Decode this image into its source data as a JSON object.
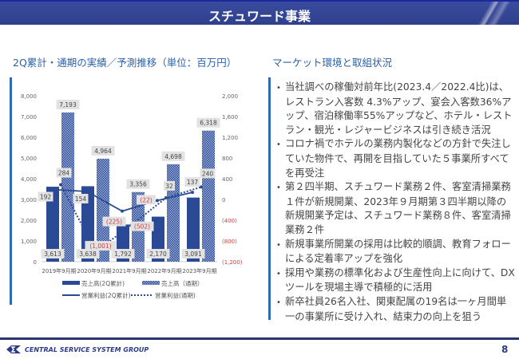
{
  "header": {
    "title": "スチュワード事業"
  },
  "left": {
    "title": "2Q累計・通期の実績／予測推移（単位：百万円）"
  },
  "right": {
    "title": "マーケット環境と取組状況",
    "bullets": [
      "当社調べの稼働対前年比(2023.4／2022.4比)は、レストラン入客数 4.3%アップ、宴会入客数36%アップ、宿泊稼働率55%アップなど、ホテル・レストラン・観光・レジャービジネスは引き続き活況",
      "コロナ禍でホテルの業務内製化などの方針で失注していた物件で、再開を目指していた５事業所すべてを再受注",
      "第２四半期、スチュワード業務２件、客室清掃業務１件が新規開業、2023年９月期第３四半期以降の新規開業予定は、スチュワード業務８件、客室清掃業務２件",
      "新規事業所開業の採用は比較的順調、教育フォローによる定着率アップを強化",
      "採用や業務の標準化および生産性向上に向けて、DXツールを現場主導で積極的に活用",
      "新卒社員26名入社、関東配属の19名は一ヶ月間単一の事業所に受け入れ、結束力の向上を狙う"
    ]
  },
  "footer": {
    "logo": "CENTRAL SERVICE SYSTEM GROUP",
    "page": "8"
  },
  "colors": {
    "header": "#34469a",
    "accent": "#2a5fa8",
    "bar": "#2b4a96",
    "negative": "#d04040"
  },
  "chart_data": {
    "type": "bar+line",
    "categories": [
      "2019年9月期",
      "2020年9月期",
      "2021年9月期",
      "2022年9月期",
      "2023年9月期"
    ],
    "left_axis": {
      "ylim": [
        0,
        8000
      ],
      "ticks": [
        "0",
        "1,000",
        "2,000",
        "3,000",
        "4,000",
        "5,000",
        "6,000",
        "7,000",
        "8,000"
      ]
    },
    "right_axis": {
      "ylim": [
        -1200,
        2000
      ],
      "ticks": [
        "(1,200)",
        "(800)",
        "(400)",
        "0",
        "400",
        "800",
        "1,200",
        "1,600",
        "2,000"
      ]
    },
    "series": [
      {
        "name": "売上高(2Q累計)",
        "kind": "bar",
        "axis": "left",
        "values": [
          3613,
          3638,
          1792,
          2170,
          3091
        ],
        "labels": [
          "3,613",
          "3,638",
          "1,792",
          "2,170",
          "3,091"
        ]
      },
      {
        "name": "売上高（通期）",
        "kind": "bar-hatched",
        "axis": "left",
        "values": [
          7193,
          4964,
          3356,
          4698,
          6318
        ],
        "labels": [
          "7,193",
          "4,964",
          "3,356",
          "4,698",
          "6,318"
        ]
      },
      {
        "name": "営業利益(2Q累計)",
        "kind": "line-solid",
        "axis": "right",
        "values": [
          192,
          154,
          -225,
          -22,
          137
        ],
        "labels": [
          "192",
          "154",
          "(225)",
          "(22)",
          "137"
        ]
      },
      {
        "name": "営業利益(通期)",
        "kind": "line-dotted",
        "axis": "right",
        "values": [
          284,
          -1001,
          -502,
          32,
          240
        ],
        "labels": [
          "284",
          "(1,001)",
          "(502)",
          "32",
          "240"
        ]
      }
    ],
    "grid": false,
    "legend": "bottom"
  }
}
